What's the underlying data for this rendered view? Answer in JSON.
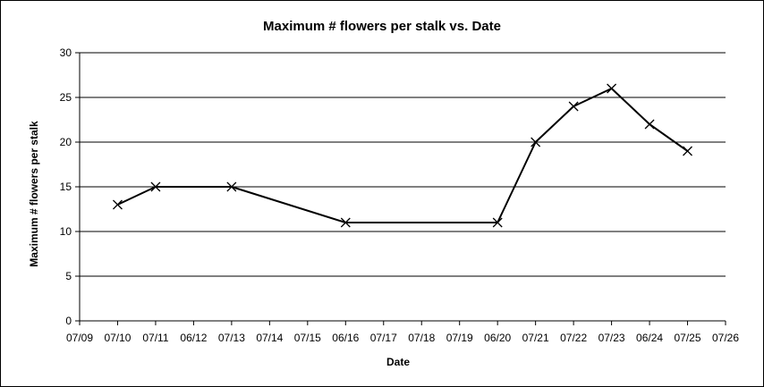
{
  "chart_data": {
    "type": "line",
    "title": "Maximum # flowers per stalk vs. Date",
    "xlabel": "Date",
    "ylabel": "Maximum # flowers per stalk",
    "ylim": [
      0,
      30
    ],
    "y_ticks": [
      "0",
      "5",
      "10",
      "15",
      "20",
      "25",
      "30"
    ],
    "x_tick_labels": [
      "07/09",
      "07/10",
      "07/11",
      "06/12",
      "07/13",
      "07/14",
      "07/15",
      "06/16",
      "07/17",
      "07/18",
      "07/19",
      "06/20",
      "07/21",
      "07/22",
      "07/23",
      "06/24",
      "07/25",
      "07/26"
    ],
    "grid": "horizontal",
    "legend": "none",
    "marker": "x",
    "line_color": "#000000",
    "series": [
      {
        "points": [
          {
            "x": "07/10",
            "y": 13
          },
          {
            "x": "07/11",
            "y": 15
          },
          {
            "x": "07/13",
            "y": 15
          },
          {
            "x": "06/16",
            "y": 11
          },
          {
            "x": "06/20",
            "y": 11
          },
          {
            "x": "07/21",
            "y": 20
          },
          {
            "x": "07/22",
            "y": 24
          },
          {
            "x": "07/23",
            "y": 26
          },
          {
            "x": "06/24",
            "y": 22
          },
          {
            "x": "07/25",
            "y": 19
          }
        ]
      }
    ]
  }
}
